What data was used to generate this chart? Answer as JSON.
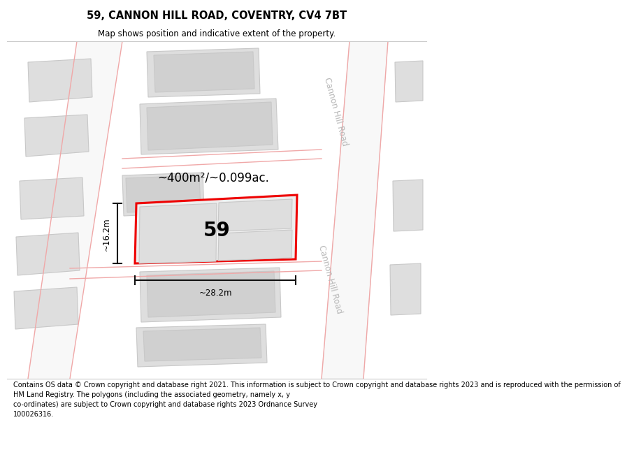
{
  "title": "59, CANNON HILL ROAD, COVENTRY, CV4 7BT",
  "subtitle": "Map shows position and indicative extent of the property.",
  "footer": "Contains OS data © Crown copyright and database right 2021. This information is subject to Crown copyright and database rights 2023 and is reproduced with the permission of\nHM Land Registry. The polygons (including the associated geometry, namely x, y\nco-ordinates) are subject to Crown copyright and database rights 2023 Ordnance Survey\n100026316.",
  "area_label": "~400m²/~0.099ac.",
  "number_label": "59",
  "width_label": "~28.2m",
  "height_label": "~16.2m",
  "road_label_top": "Cannon Hill Road",
  "road_label_bottom": "Cannon Hill Road",
  "map_bg": "#f2f2f2",
  "white": "#ffffff",
  "building_fill": "#dedede",
  "building_fill2": "#d0d0d0",
  "building_edge": "#c8c8c8",
  "highlight_stroke": "#ee0000",
  "highlight_fill": "#eeeeee",
  "road_line_color": "#f0a8a8",
  "road_band_color": "#f8f8f8",
  "dim_line_color": "#111111",
  "road_text_color": "#b8b8b8",
  "title_fontsize": 10.5,
  "subtitle_fontsize": 8.5,
  "footer_fontsize": 7.0,
  "area_fontsize": 12,
  "number_fontsize": 20,
  "dim_fontsize": 8.5,
  "road_fontsize": 8.5
}
